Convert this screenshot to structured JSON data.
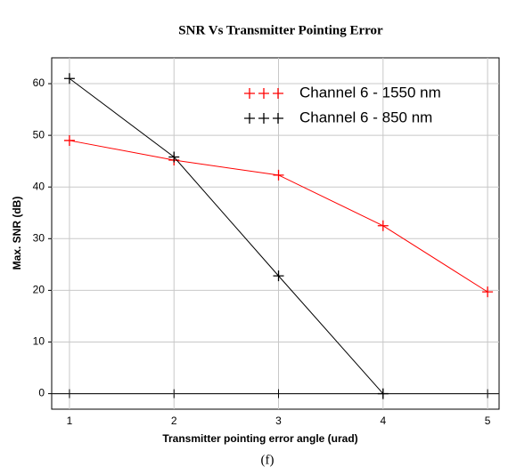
{
  "chart_data": {
    "type": "line",
    "title": "SNR Vs Transmitter Pointing Error",
    "x_label": "Transmitter pointing error angle (urad)",
    "y_label": "Max. SNR (dB)",
    "caption": "(f)",
    "x": [
      1,
      2,
      3,
      4,
      5
    ],
    "series": [
      {
        "name": "Channel 6 - 1550 nm",
        "color": "#ff0000",
        "values": [
          49,
          45.2,
          42.3,
          32.5,
          19.7
        ]
      },
      {
        "name": "Channel 6 - 850 nm",
        "color": "#000000",
        "values": [
          61,
          45.8,
          22.8,
          0,
          null
        ]
      }
    ],
    "xlim": [
      0.83,
      5.11
    ],
    "xticks": [
      1,
      2,
      3,
      4,
      5
    ],
    "ylim": [
      -3,
      65
    ],
    "yticks": [
      0,
      10,
      20,
      30,
      40,
      50,
      60
    ],
    "grid": true,
    "legend": "upper right"
  }
}
